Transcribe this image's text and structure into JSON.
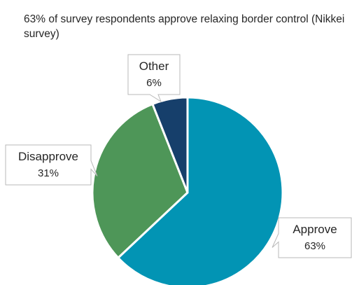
{
  "chart_data": {
    "type": "pie",
    "title": "63% of survey respondents approve relaxing border control (Nikkei survey)",
    "slices": [
      {
        "label": "Approve",
        "value": 63,
        "value_label": "63%",
        "color": "#0294b4"
      },
      {
        "label": "Disapprove",
        "value": 31,
        "value_label": "31%",
        "color": "#4e9658"
      },
      {
        "label": "Other",
        "value": 6,
        "value_label": "6%",
        "color": "#163f6b"
      }
    ],
    "start_angle": "12 o'clock, clockwise",
    "legend": "none (data-label callouts)"
  }
}
